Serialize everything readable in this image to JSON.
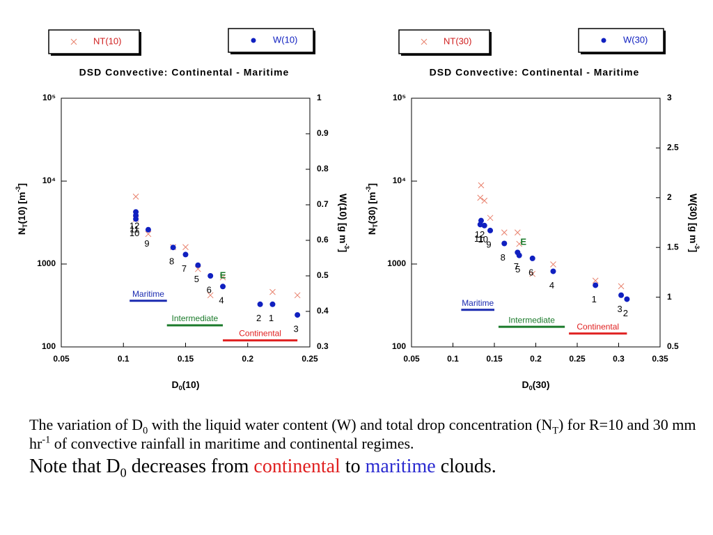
{
  "chart_data": [
    {
      "type": "scatter",
      "title": "DSD  Convective: Continental - Maritime",
      "xlabel": [
        {
          "text": "D"
        },
        {
          "text": "0",
          "sub": true
        },
        {
          "text": "(10)"
        }
      ],
      "ylabel": [
        {
          "text": "N"
        },
        {
          "text": "T",
          "sub": true
        },
        {
          "text": "(10) [m"
        },
        {
          "text": "-3",
          "sup": true
        },
        {
          "text": "]"
        }
      ],
      "y2label": [
        {
          "text": "W(10) [g m"
        },
        {
          "text": "-3",
          "sup": true
        },
        {
          "text": "]"
        }
      ],
      "xlim": [
        0.05,
        0.25
      ],
      "xticks": [
        0.05,
        0.1,
        0.15,
        0.2,
        0.25
      ],
      "ylim": [
        100,
        100000
      ],
      "ylog": true,
      "yticks": [
        100,
        1000,
        {
          "value": 10000,
          "label": "10⁴"
        },
        {
          "value": 100000,
          "label": "10⁵"
        }
      ],
      "y2lim": [
        0.3,
        1
      ],
      "y2ticks": [
        0.3,
        0.4,
        0.5,
        0.6,
        0.7,
        0.8,
        0.9,
        1
      ],
      "x": [
        0.22,
        0.21,
        0.24,
        0.18,
        0.16,
        0.17,
        0.15,
        0.14,
        0.12,
        0.11,
        0.11,
        0.11
      ],
      "point_labels": [
        "1",
        "2",
        "3",
        "4",
        "5",
        "6",
        "7",
        "8",
        "9",
        "10",
        "11",
        "12"
      ],
      "series": [
        {
          "name": "NT(10)",
          "color": "#e8806c",
          "marker": "x",
          "values": [
            460,
            null,
            420,
            690,
            870,
            420,
            1600,
            1600,
            2300,
            3500,
            4000,
            6500
          ]
        },
        {
          "name": "W(10)",
          "color": "#1020c0",
          "marker": "circle",
          "axis": "y2",
          "values": [
            0.42,
            0.42,
            0.39,
            0.47,
            0.53,
            0.5,
            0.56,
            0.58,
            0.63,
            0.66,
            0.67,
            0.68
          ]
        }
      ],
      "annotations": [
        {
          "text": "E",
          "x": 0.18,
          "y2": 0.5,
          "color": "#1a7a2a"
        }
      ],
      "regimes": [
        {
          "name": "Maritime",
          "color": "#1a2ab0",
          "x": [
            0.105,
            0.135
          ],
          "y": 360
        },
        {
          "name": "Intermediate",
          "color": "#1a7a2a",
          "x": [
            0.135,
            0.18
          ],
          "y": 182
        },
        {
          "name": "Continental",
          "color": "#e02020",
          "x": [
            0.18,
            0.24
          ],
          "y": 120
        }
      ]
    },
    {
      "type": "scatter",
      "title": "DSD  Convective: Continental - Maritime",
      "xlabel": [
        {
          "text": "D"
        },
        {
          "text": "0",
          "sub": true
        },
        {
          "text": "(30)"
        }
      ],
      "ylabel": [
        {
          "text": "N"
        },
        {
          "text": "T",
          "sub": true
        },
        {
          "text": "(30)  [m"
        },
        {
          "text": "-3",
          "sup": true
        },
        {
          "text": "]"
        }
      ],
      "y2label": [
        {
          "text": "W(30) [g m"
        },
        {
          "text": "-3",
          "sup": true
        },
        {
          "text": "]"
        }
      ],
      "xlim": [
        0.05,
        0.35
      ],
      "xticks": [
        0.05,
        0.1,
        0.15,
        0.2,
        0.25,
        0.3,
        0.35
      ],
      "ylim": [
        100,
        100000
      ],
      "ylog": true,
      "yticks": [
        100,
        1000,
        {
          "value": 10000,
          "label": "10⁴"
        },
        {
          "value": 100000,
          "label": "10⁵"
        }
      ],
      "y2lim": [
        0.5,
        3
      ],
      "y2ticks": [
        0.5,
        1,
        1.5,
        2,
        2.5,
        3
      ],
      "x": [
        0.272,
        0.31,
        0.303,
        0.221,
        0.18,
        0.196,
        0.178,
        0.162,
        0.145,
        0.138,
        0.133,
        0.134
      ],
      "point_labels": [
        "1",
        "2",
        "3",
        "4",
        "5",
        "6",
        "7",
        "8",
        "9",
        "10",
        "11",
        "12"
      ],
      "series": [
        {
          "name": "NT(30)",
          "color": "#e8806c",
          "marker": "x",
          "values": [
            630,
            null,
            540,
            990,
            1750,
            760,
            2400,
            2400,
            3600,
            5800,
            6300,
            8900
          ]
        },
        {
          "name": "W(30)",
          "color": "#1020c0",
          "marker": "circle",
          "axis": "y2",
          "values": [
            1.12,
            0.98,
            1.02,
            1.26,
            1.42,
            1.39,
            1.45,
            1.54,
            1.67,
            1.72,
            1.73,
            1.77
          ]
        }
      ],
      "annotations": [
        {
          "text": "E",
          "x": 0.185,
          "y2": 1.55,
          "color": "#1a7a2a"
        }
      ],
      "regimes": [
        {
          "name": "Maritime",
          "color": "#1a2ab0",
          "x": [
            0.11,
            0.15
          ],
          "y": 280
        },
        {
          "name": "Intermediate",
          "color": "#1a7a2a",
          "x": [
            0.155,
            0.235
          ],
          "y": 175
        },
        {
          "name": "Continental",
          "color": "#e02020",
          "x": [
            0.24,
            0.31
          ],
          "y": 145
        }
      ]
    }
  ],
  "caption": [
    [
      {
        "text": "The variation of D"
      },
      {
        "text": "0",
        "sub": true
      },
      {
        "text": " with the liquid water content (W) and total drop concentration (N"
      },
      {
        "text": "T",
        "sub": true
      },
      {
        "text": ") for R=10 and 30 mm hr"
      },
      {
        "text": "-1",
        "sup": true
      },
      {
        "text": " of convective rainfall in maritime and continental regimes."
      }
    ],
    [
      {
        "text": "Note that D"
      },
      {
        "text": "0",
        "sub": true
      },
      {
        "text": " decreases from "
      },
      {
        "text": "continental",
        "color": "#e02020"
      },
      {
        "text": " to "
      },
      {
        "text": "maritime",
        "color": "#2a2ad0"
      },
      {
        "text": " clouds."
      }
    ]
  ]
}
